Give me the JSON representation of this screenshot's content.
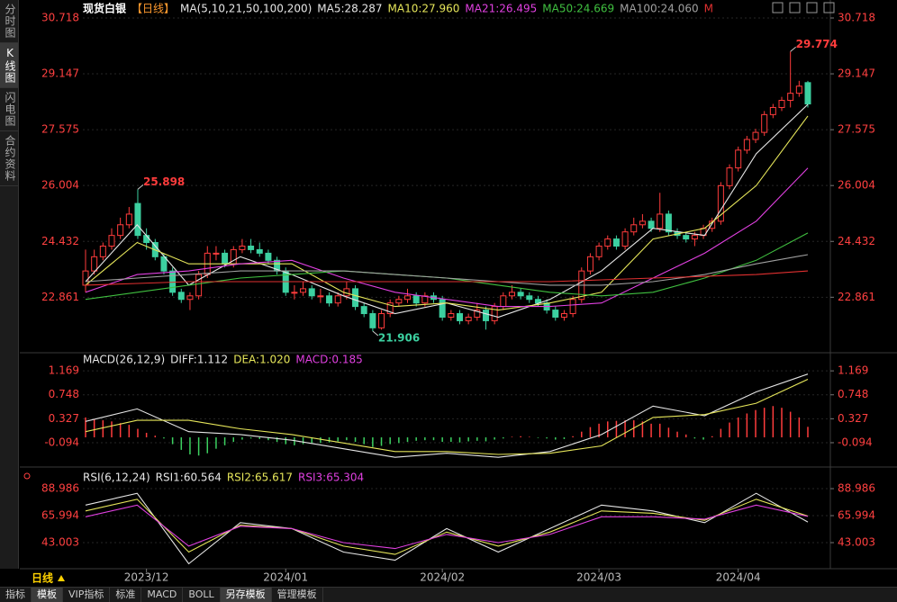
{
  "sidebar": [
    "分时图",
    "K线图",
    "闪电图",
    "合约资料"
  ],
  "header": {
    "symbol": "现货白银",
    "period": "【日线】"
  },
  "chart_data": [
    {
      "type": "candlestick",
      "indicator": "MA(5,10,21,50,100,200)",
      "up_color": "#ff3c3c",
      "down_color": "#3cd0a0",
      "candles": [
        [
          23.2,
          24.2,
          23.0,
          23.6
        ],
        [
          23.6,
          24.2,
          23.5,
          24.0
        ],
        [
          24.0,
          24.4,
          23.9,
          24.3
        ],
        [
          24.3,
          24.8,
          24.2,
          24.6
        ],
        [
          24.6,
          25.1,
          24.5,
          24.9
        ],
        [
          24.9,
          25.4,
          24.8,
          25.2
        ],
        [
          25.5,
          25.898,
          24.5,
          24.6
        ],
        [
          24.6,
          24.8,
          24.2,
          24.4
        ],
        [
          24.4,
          24.5,
          23.9,
          24.0
        ],
        [
          24.0,
          24.1,
          23.5,
          23.6
        ],
        [
          23.6,
          23.7,
          22.9,
          23.0
        ],
        [
          23.0,
          23.1,
          22.7,
          22.8
        ],
        [
          22.8,
          23.0,
          22.5,
          22.9
        ],
        [
          22.9,
          23.6,
          22.8,
          23.5
        ],
        [
          23.5,
          24.3,
          23.4,
          24.1
        ],
        [
          24.1,
          24.3,
          23.9,
          24.1
        ],
        [
          24.1,
          24.2,
          23.7,
          23.8
        ],
        [
          23.8,
          24.3,
          23.7,
          24.2
        ],
        [
          24.2,
          24.5,
          24.1,
          24.3
        ],
        [
          24.3,
          24.5,
          24.1,
          24.2
        ],
        [
          24.2,
          24.4,
          24.0,
          24.1
        ],
        [
          24.1,
          24.2,
          23.8,
          23.9
        ],
        [
          23.9,
          24.0,
          23.5,
          23.6
        ],
        [
          23.6,
          23.7,
          22.9,
          23.0
        ],
        [
          23.0,
          23.2,
          22.8,
          23.0
        ],
        [
          23.0,
          23.3,
          22.9,
          23.1
        ],
        [
          23.1,
          23.2,
          22.8,
          22.9
        ],
        [
          22.9,
          23.1,
          22.7,
          22.9
        ],
        [
          22.9,
          23.0,
          22.6,
          22.7
        ],
        [
          22.7,
          23.0,
          22.6,
          22.9
        ],
        [
          22.9,
          23.3,
          22.8,
          23.1
        ],
        [
          23.1,
          23.2,
          22.5,
          22.6
        ],
        [
          22.6,
          22.7,
          22.3,
          22.4
        ],
        [
          22.4,
          22.5,
          21.906,
          22.0
        ],
        [
          22.0,
          22.5,
          21.95,
          22.4
        ],
        [
          22.4,
          22.8,
          22.3,
          22.7
        ],
        [
          22.7,
          22.9,
          22.6,
          22.8
        ],
        [
          22.8,
          23.1,
          22.7,
          22.9
        ],
        [
          22.9,
          23.0,
          22.6,
          22.7
        ],
        [
          22.7,
          23.0,
          22.6,
          22.9
        ],
        [
          22.9,
          23.0,
          22.7,
          22.8
        ],
        [
          22.8,
          22.9,
          22.2,
          22.3
        ],
        [
          22.3,
          22.5,
          22.2,
          22.4
        ],
        [
          22.4,
          22.5,
          22.1,
          22.2
        ],
        [
          22.2,
          22.4,
          22.1,
          22.3
        ],
        [
          22.3,
          22.7,
          22.2,
          22.5
        ],
        [
          22.5,
          22.6,
          21.95,
          22.2
        ],
        [
          22.2,
          22.7,
          22.1,
          22.6
        ],
        [
          22.6,
          23.0,
          22.5,
          22.9
        ],
        [
          22.9,
          23.2,
          22.8,
          23.0
        ],
        [
          23.0,
          23.1,
          22.8,
          22.9
        ],
        [
          22.9,
          23.0,
          22.7,
          22.8
        ],
        [
          22.8,
          22.9,
          22.6,
          22.7
        ],
        [
          22.7,
          22.8,
          22.4,
          22.5
        ],
        [
          22.5,
          22.6,
          22.2,
          22.3
        ],
        [
          22.3,
          22.5,
          22.2,
          22.4
        ],
        [
          22.4,
          22.9,
          22.3,
          22.8
        ],
        [
          22.8,
          23.7,
          22.7,
          23.6
        ],
        [
          23.6,
          24.1,
          23.5,
          24.0
        ],
        [
          24.0,
          24.4,
          23.9,
          24.3
        ],
        [
          24.3,
          24.6,
          24.2,
          24.5
        ],
        [
          24.5,
          24.6,
          24.2,
          24.3
        ],
        [
          24.3,
          24.8,
          24.2,
          24.7
        ],
        [
          24.7,
          25.1,
          24.6,
          24.9
        ],
        [
          24.9,
          25.2,
          24.8,
          25.0
        ],
        [
          25.0,
          25.1,
          24.7,
          24.8
        ],
        [
          24.8,
          25.8,
          24.7,
          25.2
        ],
        [
          25.2,
          25.3,
          24.6,
          24.7
        ],
        [
          24.7,
          24.8,
          24.5,
          24.6
        ],
        [
          24.6,
          24.7,
          24.4,
          24.5
        ],
        [
          24.5,
          24.7,
          24.3,
          24.6
        ],
        [
          24.6,
          24.9,
          24.5,
          24.8
        ],
        [
          24.8,
          25.1,
          24.7,
          25.0
        ],
        [
          25.0,
          26.1,
          24.9,
          26.0
        ],
        [
          26.0,
          26.6,
          25.9,
          26.5
        ],
        [
          26.5,
          27.1,
          26.4,
          27.0
        ],
        [
          27.0,
          27.4,
          26.9,
          27.3
        ],
        [
          27.3,
          27.6,
          27.2,
          27.5
        ],
        [
          27.5,
          28.1,
          27.4,
          28.0
        ],
        [
          28.0,
          28.3,
          27.9,
          28.2
        ],
        [
          28.2,
          28.5,
          28.1,
          28.4
        ],
        [
          28.4,
          29.774,
          28.2,
          28.6
        ],
        [
          28.6,
          28.95,
          28.5,
          28.8
        ],
        [
          28.9,
          28.95,
          28.2,
          28.3
        ]
      ],
      "series": [
        {
          "name": "MA5:28.287",
          "color": "#e6e6e6",
          "values": [
            23.3,
            24.9,
            23.2,
            24.0,
            23.5,
            22.9,
            22.4,
            22.7,
            22.3,
            22.8,
            23.6,
            24.8,
            24.6,
            26.9,
            28.287
          ]
        },
        {
          "name": "MA10:27.960",
          "color": "#e6e65a",
          "values": [
            23.2,
            24.4,
            23.8,
            23.8,
            23.8,
            23.0,
            22.6,
            22.7,
            22.5,
            22.7,
            23.0,
            24.5,
            24.8,
            26.0,
            27.96
          ]
        },
        {
          "name": "MA21:26.495",
          "color": "#e040e0",
          "values": [
            23.0,
            23.5,
            23.6,
            23.8,
            23.9,
            23.4,
            23.0,
            22.8,
            22.6,
            22.6,
            22.7,
            23.4,
            24.1,
            25.0,
            26.495
          ]
        },
        {
          "name": "MA50:24.669",
          "color": "#40c040",
          "values": [
            22.8,
            23.0,
            23.2,
            23.4,
            23.5,
            23.6,
            23.5,
            23.4,
            23.2,
            23.0,
            22.9,
            23.0,
            23.4,
            23.9,
            24.669
          ]
        },
        {
          "name": "MA100:24.060",
          "color": "#a0a0a0",
          "values": [
            23.3,
            23.4,
            23.5,
            23.6,
            23.6,
            23.6,
            23.5,
            23.4,
            23.3,
            23.2,
            23.2,
            23.3,
            23.5,
            23.8,
            24.06
          ]
        },
        {
          "name": "M",
          "color": "#e03030",
          "values": [
            23.2,
            23.25,
            23.3,
            23.3,
            23.3,
            23.3,
            23.3,
            23.3,
            23.3,
            23.3,
            23.35,
            23.4,
            23.45,
            23.5,
            23.6
          ]
        }
      ],
      "ylim": [
        21.35,
        30.718
      ],
      "yticks": [
        30.718,
        29.147,
        27.575,
        26.004,
        24.432,
        22.861
      ],
      "tick_color": "#ff4040",
      "grid": true,
      "xticks": [
        {
          "value": 7,
          "label": "2023/12"
        },
        {
          "value": 23,
          "label": "2024/01"
        },
        {
          "value": 41,
          "label": "2024/02"
        },
        {
          "value": 59,
          "label": "2024/03"
        },
        {
          "value": 75,
          "label": "2024/04"
        }
      ]
    },
    {
      "type": "macd",
      "indicator": "MACD(26,12,9)",
      "histogram": {
        "name": "MACD:0.185",
        "color": "#e040e0",
        "up_color": "#ff3c3c",
        "down_color": "#3cd060",
        "values": [
          0.35,
          0.32,
          0.3,
          0.28,
          0.25,
          0.22,
          0.15,
          0.08,
          0.03,
          -0.02,
          -0.12,
          -0.22,
          -0.3,
          -0.32,
          -0.28,
          -0.2,
          -0.14,
          -0.08,
          -0.04,
          -0.02,
          -0.03,
          -0.05,
          -0.08,
          -0.12,
          -0.14,
          -0.12,
          -0.1,
          -0.1,
          -0.09,
          -0.07,
          -0.05,
          -0.08,
          -0.12,
          -0.17,
          -0.15,
          -0.12,
          -0.1,
          -0.08,
          -0.06,
          -0.05,
          -0.05,
          -0.08,
          -0.08,
          -0.09,
          -0.07,
          -0.06,
          -0.07,
          -0.04,
          -0.02,
          0.01,
          0.02,
          0.01,
          -0.01,
          -0.02,
          -0.04,
          -0.03,
          0.02,
          0.1,
          0.18,
          0.24,
          0.28,
          0.29,
          0.3,
          0.3,
          0.28,
          0.24,
          0.24,
          0.17,
          0.1,
          0.05,
          -0.02,
          -0.04,
          0.02,
          0.15,
          0.26,
          0.35,
          0.42,
          0.48,
          0.52,
          0.55,
          0.52,
          0.45,
          0.35,
          0.185
        ]
      },
      "series": [
        {
          "name": "DIFF:1.112",
          "color": "#e6e6e6",
          "values": [
            0.28,
            0.5,
            0.1,
            0.05,
            -0.05,
            -0.2,
            -0.35,
            -0.28,
            -0.35,
            -0.25,
            0.05,
            0.55,
            0.38,
            0.8,
            1.112
          ]
        },
        {
          "name": "DEA:1.020",
          "color": "#e6e65a",
          "values": [
            0.1,
            0.3,
            0.3,
            0.15,
            0.05,
            -0.1,
            -0.25,
            -0.25,
            -0.3,
            -0.28,
            -0.15,
            0.35,
            0.4,
            0.6,
            1.02
          ]
        }
      ],
      "ylim": [
        -0.49,
        1.44
      ],
      "yticks": [
        1.169,
        0.748,
        0.327,
        -0.094
      ],
      "tick_color": "#ff4040",
      "grid": true
    },
    {
      "type": "rsi",
      "indicator": "RSI(6,12,24)",
      "series": [
        {
          "name": "RSI1:60.564",
          "color": "#e6e6e6",
          "values": [
            75,
            85,
            25,
            60,
            55,
            35,
            28,
            55,
            35,
            55,
            75,
            70,
            60,
            85,
            60.564
          ]
        },
        {
          "name": "RSI2:65.617",
          "color": "#e6e65a",
          "values": [
            70,
            80,
            35,
            58,
            55,
            40,
            33,
            52,
            40,
            52,
            70,
            68,
            62,
            80,
            65.617
          ]
        },
        {
          "name": "RSI3:65.304",
          "color": "#e040e0",
          "values": [
            65,
            75,
            40,
            57,
            55,
            43,
            38,
            50,
            43,
            50,
            65,
            65,
            63,
            75,
            65.304
          ]
        }
      ],
      "ylim": [
        20.8,
        102.8
      ],
      "yticks": [
        88.986,
        65.994,
        43.003
      ],
      "tick_color": "#ff4040",
      "grid": true
    }
  ],
  "footer": {
    "period": "日线",
    "tabs": [
      "指标",
      "模板",
      "VIP指标",
      "标准",
      "MACD",
      "BOLL",
      "另存模板",
      "管理模板"
    ]
  }
}
